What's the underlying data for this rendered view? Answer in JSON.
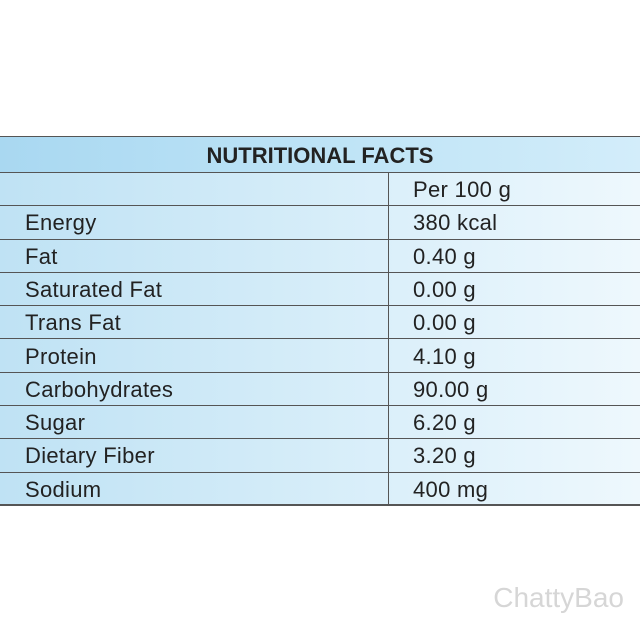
{
  "table": {
    "title": "NUTRITIONAL FACTS",
    "unit": "Per 100 g",
    "rows": [
      [
        "Energy",
        "380 kcal"
      ],
      [
        "Fat",
        "0.40 g"
      ],
      [
        "Saturated Fat",
        "0.00 g"
      ],
      [
        "Trans Fat",
        "0.00 g"
      ],
      [
        "Protein",
        "4.10 g"
      ],
      [
        "Carbohydrates",
        "90.00 g"
      ],
      [
        "Sugar",
        "6.20 g"
      ],
      [
        "Dietary Fiber",
        "3.20 g"
      ],
      [
        "Sodium",
        "400 mg"
      ]
    ]
  },
  "watermark": "ChattyBao"
}
